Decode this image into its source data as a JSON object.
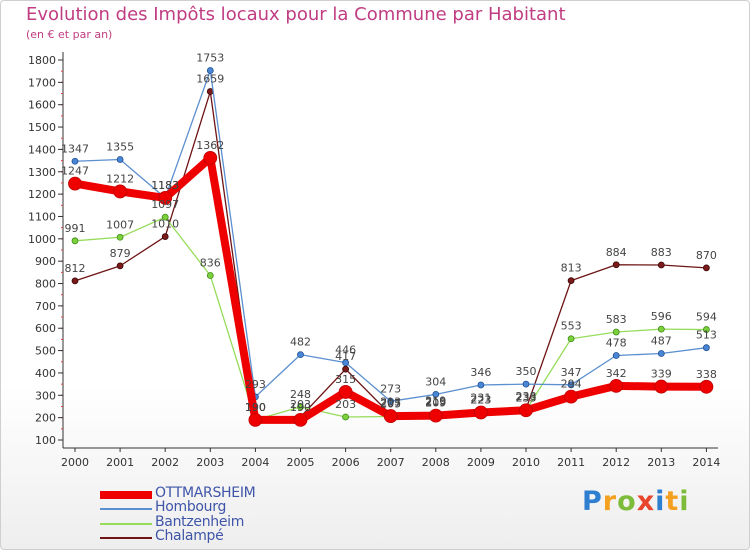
{
  "header": {
    "title": "Evolution des Impôts locaux pour la Commune par Habitant",
    "subtitle": "(en € et par an)"
  },
  "brand": {
    "letters": [
      "P",
      "r",
      "o",
      "x",
      "i",
      "t",
      "i"
    ],
    "colors": [
      "#2f7fd0",
      "#f4a020",
      "#7dbb3a",
      "#e8452c",
      "#2f7fd0",
      "#f4a020",
      "#7dbb3a"
    ]
  },
  "chart_data": {
    "type": "line",
    "x": [
      "2000",
      "2001",
      "2002",
      "2003",
      "2004",
      "2005",
      "2006",
      "2007",
      "2008",
      "2009",
      "2010",
      "2011",
      "2012",
      "2013",
      "2014"
    ],
    "ylim": [
      100,
      1800
    ],
    "yticks": [
      100,
      200,
      300,
      400,
      500,
      600,
      700,
      800,
      900,
      1000,
      1100,
      1200,
      1300,
      1400,
      1500,
      1600,
      1700,
      1800
    ],
    "grid": false,
    "legend_position": "bottom-left",
    "series": [
      {
        "name": "OTTMARSHEIM",
        "color": "#ee0000",
        "values": [
          1247,
          1212,
          1183,
          1362,
          190,
          190,
          315,
          207,
          209,
          223,
          233,
          294,
          342,
          339,
          338
        ],
        "labels": [
          "1247",
          "1212",
          "1183",
          "1362",
          "190",
          "190",
          "315",
          "207",
          "209",
          "223",
          "233",
          "294",
          "342",
          "339",
          "338"
        ]
      },
      {
        "name": "Hombourg",
        "color": "#5b8fcf",
        "values": [
          1347,
          1355,
          1183,
          1753,
          293,
          482,
          446,
          273,
          304,
          346,
          350,
          347,
          478,
          487,
          513
        ],
        "labels": [
          "1347",
          "1355",
          "1183",
          "1753",
          "293",
          "482",
          "446",
          "273",
          "304",
          "346",
          "350",
          "347",
          "478",
          "487",
          "513"
        ]
      },
      {
        "name": "Bantzenheim",
        "color": "#96dc5a",
        "values": [
          991,
          1007,
          1097,
          836,
          190,
          248,
          203,
          205,
          215,
          223,
          233,
          553,
          583,
          596,
          594
        ],
        "labels": [
          "991",
          "1007",
          "1097",
          "836",
          "190",
          "248",
          "203",
          "205",
          "215",
          "223",
          "233",
          "553",
          "583",
          "596",
          "594"
        ]
      },
      {
        "name": "Chalampé",
        "color": "#6e1414",
        "values": [
          812,
          879,
          1010,
          1659,
          190,
          203,
          417,
          213,
          219,
          231,
          238,
          813,
          884,
          883,
          870
        ],
        "labels": [
          "812",
          "879",
          "1010",
          "1659",
          "190",
          "203",
          "417",
          "213",
          "219",
          "231",
          "238",
          "813",
          "884",
          "883",
          "870"
        ]
      }
    ]
  }
}
